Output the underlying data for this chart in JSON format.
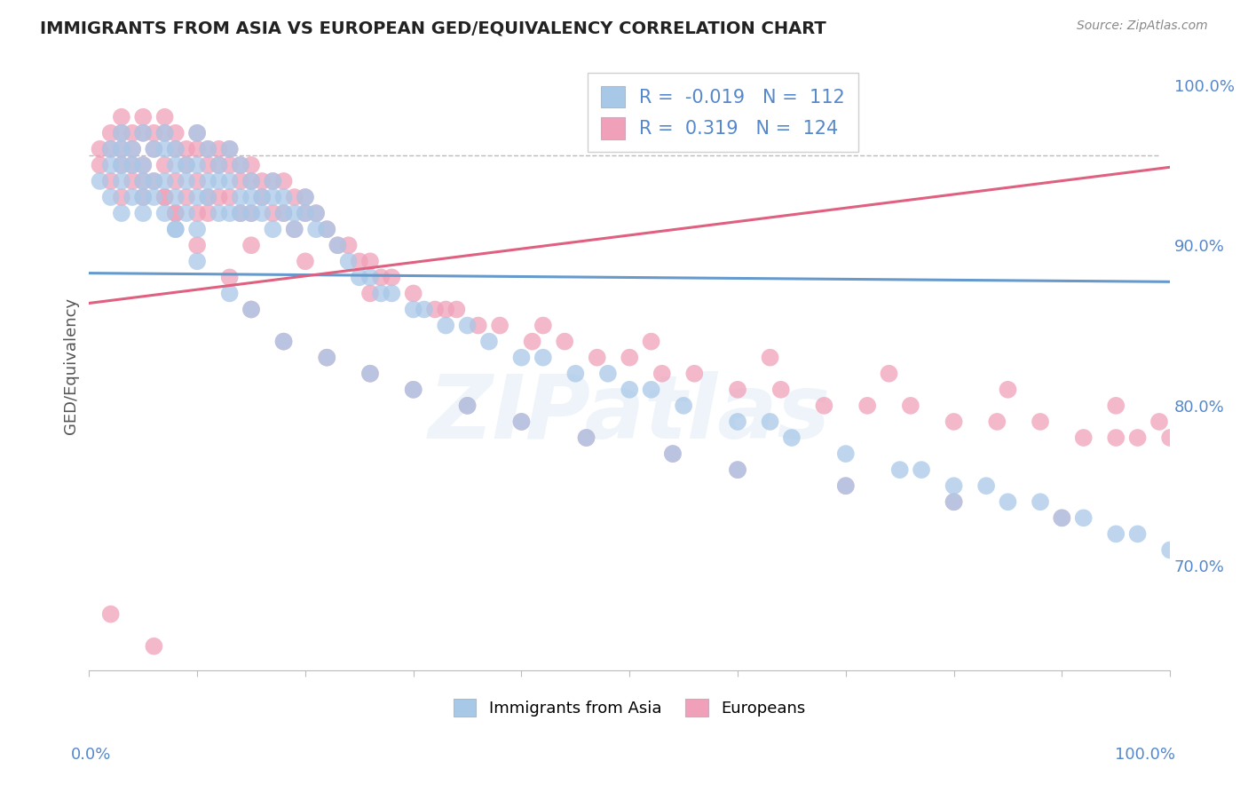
{
  "title": "IMMIGRANTS FROM ASIA VS EUROPEAN GED/EQUIVALENCY CORRELATION CHART",
  "source": "Source: ZipAtlas.com",
  "ylabel": "GED/Equivalency",
  "legend_label_asia": "Immigrants from Asia",
  "legend_label_euro": "Europeans",
  "watermark": "ZIPatlas",
  "xlim": [
    0.0,
    1.0
  ],
  "ylim": [
    0.635,
    1.015
  ],
  "ytick_vals": [
    0.7,
    0.8,
    0.9,
    1.0
  ],
  "ytick_labels": [
    "70.0%",
    "80.0%",
    "90.0%",
    "100.0%"
  ],
  "asia_R": -0.019,
  "asia_N": 112,
  "euro_R": 0.319,
  "euro_N": 124,
  "asia_color": "#a8c8e8",
  "euro_color": "#f0a0b8",
  "asia_line_color": "#6699cc",
  "euro_line_color": "#e06080",
  "dashed_line_y": 0.956,
  "title_color": "#222222",
  "source_color": "#888888",
  "ytick_color": "#5588cc",
  "xlabel_color": "#5588cc",
  "asia_x": [
    0.01,
    0.02,
    0.02,
    0.02,
    0.03,
    0.03,
    0.03,
    0.03,
    0.04,
    0.04,
    0.04,
    0.05,
    0.05,
    0.05,
    0.05,
    0.06,
    0.06,
    0.06,
    0.07,
    0.07,
    0.07,
    0.07,
    0.08,
    0.08,
    0.08,
    0.08,
    0.09,
    0.09,
    0.09,
    0.1,
    0.1,
    0.1,
    0.1,
    0.11,
    0.11,
    0.11,
    0.12,
    0.12,
    0.12,
    0.13,
    0.13,
    0.13,
    0.14,
    0.14,
    0.14,
    0.15,
    0.15,
    0.15,
    0.16,
    0.16,
    0.17,
    0.17,
    0.17,
    0.18,
    0.18,
    0.19,
    0.19,
    0.2,
    0.2,
    0.21,
    0.21,
    0.22,
    0.23,
    0.24,
    0.25,
    0.26,
    0.27,
    0.28,
    0.3,
    0.31,
    0.33,
    0.35,
    0.37,
    0.4,
    0.42,
    0.45,
    0.48,
    0.5,
    0.52,
    0.55,
    0.6,
    0.63,
    0.65,
    0.7,
    0.75,
    0.77,
    0.8,
    0.83,
    0.85,
    0.88,
    0.9,
    0.92,
    0.95,
    0.97,
    1.0,
    0.03,
    0.05,
    0.08,
    0.1,
    0.13,
    0.15,
    0.18,
    0.22,
    0.26,
    0.3,
    0.35,
    0.4,
    0.46,
    0.54,
    0.6,
    0.7,
    0.8
  ],
  "asia_y": [
    0.94,
    0.96,
    0.95,
    0.93,
    0.97,
    0.96,
    0.94,
    0.92,
    0.96,
    0.95,
    0.93,
    0.97,
    0.95,
    0.94,
    0.92,
    0.96,
    0.94,
    0.93,
    0.97,
    0.96,
    0.94,
    0.92,
    0.96,
    0.95,
    0.93,
    0.91,
    0.95,
    0.94,
    0.92,
    0.97,
    0.95,
    0.93,
    0.91,
    0.96,
    0.94,
    0.93,
    0.95,
    0.94,
    0.92,
    0.96,
    0.94,
    0.92,
    0.95,
    0.93,
    0.92,
    0.94,
    0.93,
    0.92,
    0.93,
    0.92,
    0.94,
    0.93,
    0.91,
    0.93,
    0.92,
    0.92,
    0.91,
    0.93,
    0.92,
    0.92,
    0.91,
    0.91,
    0.9,
    0.89,
    0.88,
    0.88,
    0.87,
    0.87,
    0.86,
    0.86,
    0.85,
    0.85,
    0.84,
    0.83,
    0.83,
    0.82,
    0.82,
    0.81,
    0.81,
    0.8,
    0.79,
    0.79,
    0.78,
    0.77,
    0.76,
    0.76,
    0.75,
    0.75,
    0.74,
    0.74,
    0.73,
    0.73,
    0.72,
    0.72,
    0.71,
    0.95,
    0.93,
    0.91,
    0.89,
    0.87,
    0.86,
    0.84,
    0.83,
    0.82,
    0.81,
    0.8,
    0.79,
    0.78,
    0.77,
    0.76,
    0.75,
    0.74
  ],
  "euro_x": [
    0.01,
    0.01,
    0.02,
    0.02,
    0.02,
    0.03,
    0.03,
    0.03,
    0.03,
    0.04,
    0.04,
    0.04,
    0.05,
    0.05,
    0.05,
    0.05,
    0.06,
    0.06,
    0.06,
    0.07,
    0.07,
    0.07,
    0.07,
    0.08,
    0.08,
    0.08,
    0.08,
    0.09,
    0.09,
    0.09,
    0.1,
    0.1,
    0.1,
    0.1,
    0.11,
    0.11,
    0.11,
    0.12,
    0.12,
    0.12,
    0.13,
    0.13,
    0.13,
    0.14,
    0.14,
    0.14,
    0.15,
    0.15,
    0.15,
    0.16,
    0.16,
    0.17,
    0.17,
    0.18,
    0.18,
    0.19,
    0.19,
    0.2,
    0.2,
    0.21,
    0.22,
    0.23,
    0.24,
    0.25,
    0.26,
    0.27,
    0.28,
    0.3,
    0.32,
    0.34,
    0.36,
    0.38,
    0.41,
    0.44,
    0.47,
    0.5,
    0.53,
    0.56,
    0.6,
    0.64,
    0.68,
    0.72,
    0.76,
    0.8,
    0.84,
    0.88,
    0.92,
    0.95,
    0.97,
    1.0,
    0.03,
    0.05,
    0.08,
    0.1,
    0.13,
    0.15,
    0.18,
    0.22,
    0.26,
    0.3,
    0.35,
    0.4,
    0.46,
    0.54,
    0.6,
    0.7,
    0.8,
    0.9,
    0.04,
    0.07,
    0.11,
    0.15,
    0.2,
    0.26,
    0.33,
    0.42,
    0.52,
    0.63,
    0.74,
    0.85,
    0.95,
    0.99,
    0.02,
    0.06
  ],
  "euro_y": [
    0.96,
    0.95,
    0.97,
    0.96,
    0.94,
    0.98,
    0.97,
    0.95,
    0.93,
    0.97,
    0.96,
    0.94,
    0.98,
    0.97,
    0.95,
    0.93,
    0.97,
    0.96,
    0.94,
    0.98,
    0.97,
    0.95,
    0.93,
    0.97,
    0.96,
    0.94,
    0.92,
    0.96,
    0.95,
    0.93,
    0.97,
    0.96,
    0.94,
    0.92,
    0.96,
    0.95,
    0.93,
    0.96,
    0.95,
    0.93,
    0.96,
    0.95,
    0.93,
    0.95,
    0.94,
    0.92,
    0.95,
    0.94,
    0.92,
    0.94,
    0.93,
    0.94,
    0.92,
    0.94,
    0.92,
    0.93,
    0.91,
    0.93,
    0.92,
    0.92,
    0.91,
    0.9,
    0.9,
    0.89,
    0.89,
    0.88,
    0.88,
    0.87,
    0.86,
    0.86,
    0.85,
    0.85,
    0.84,
    0.84,
    0.83,
    0.83,
    0.82,
    0.82,
    0.81,
    0.81,
    0.8,
    0.8,
    0.8,
    0.79,
    0.79,
    0.79,
    0.78,
    0.78,
    0.78,
    0.78,
    0.96,
    0.94,
    0.92,
    0.9,
    0.88,
    0.86,
    0.84,
    0.83,
    0.82,
    0.81,
    0.8,
    0.79,
    0.78,
    0.77,
    0.76,
    0.75,
    0.74,
    0.73,
    0.95,
    0.93,
    0.92,
    0.9,
    0.89,
    0.87,
    0.86,
    0.85,
    0.84,
    0.83,
    0.82,
    0.81,
    0.8,
    0.79,
    0.67,
    0.65
  ]
}
